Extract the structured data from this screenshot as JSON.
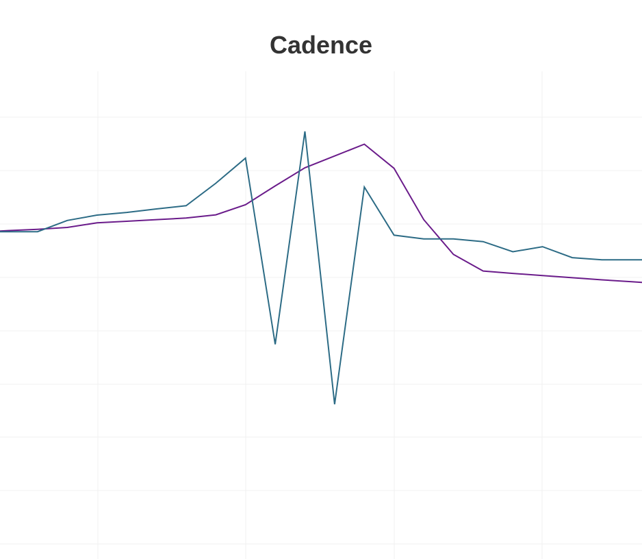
{
  "chart_data": {
    "type": "line",
    "title": "Cadence",
    "xlabel": "",
    "ylabel": "",
    "grid": true,
    "legend": "none",
    "x": [
      0,
      1,
      2,
      3,
      4,
      5,
      6,
      7,
      8,
      9,
      10,
      11,
      12,
      13,
      14,
      15,
      16,
      17,
      18,
      19,
      20,
      21
    ],
    "series": [
      {
        "color": "#6a1b8a",
        "values": [
          8.65,
          8.9,
          9.25,
          10.1,
          10.4,
          10.7,
          11.0,
          11.6,
          13.5,
          17.0,
          20.4,
          22.6,
          24.8,
          20.3,
          10.7,
          4.2,
          1.1,
          0.65,
          0.25,
          -0.15,
          -0.55,
          -0.9
        ]
      },
      {
        "color": "#2c6b85",
        "values": [
          8.45,
          8.45,
          10.55,
          11.55,
          12.05,
          12.7,
          13.3,
          17.5,
          22.2,
          -12.6,
          27.2,
          -23.8,
          16.8,
          7.8,
          7.1,
          7.1,
          6.6,
          4.7,
          5.65,
          3.6,
          3.2,
          3.2
        ]
      }
    ],
    "ylim": [
      -58,
      30
    ]
  },
  "colors": {
    "grid": "#f0f0f0",
    "title": "#333333"
  }
}
